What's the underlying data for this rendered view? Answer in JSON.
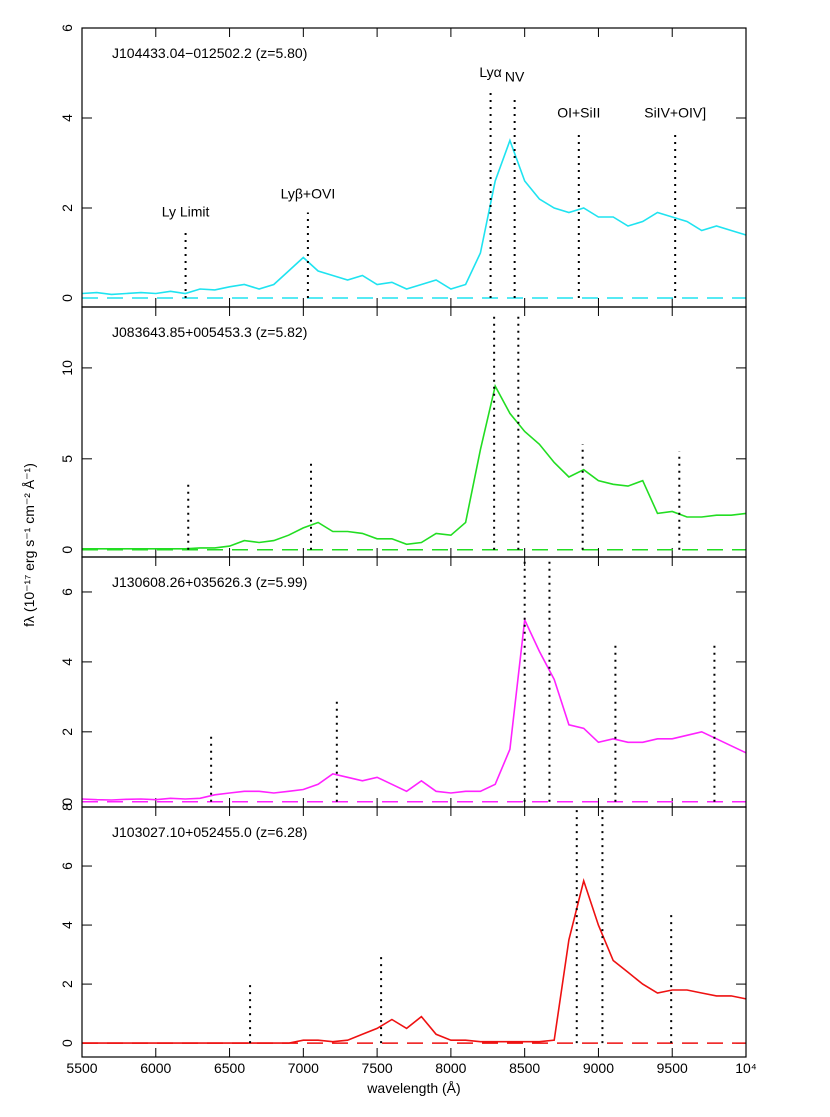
{
  "xlabel": "wavelength (Å)",
  "ylabel": "fλ (10⁻¹⁷ erg s⁻¹ cm⁻² Å⁻¹)",
  "chart_data": [
    {
      "type": "line",
      "title": "J104433.04−012502.2 (z=5.80)",
      "color": "#1fe3f0",
      "x": [
        5500,
        5600,
        5700,
        5800,
        5900,
        6000,
        6100,
        6200,
        6300,
        6400,
        6500,
        6600,
        6700,
        6800,
        6900,
        7000,
        7100,
        7200,
        7300,
        7400,
        7500,
        7600,
        7700,
        7800,
        7900,
        8000,
        8100,
        8200,
        8300,
        8400,
        8500,
        8600,
        8700,
        8800,
        8900,
        9000,
        9100,
        9200,
        9300,
        9400,
        9500,
        9600,
        9700,
        9800,
        9900,
        10000
      ],
      "values": [
        0.1,
        0.12,
        0.08,
        0.1,
        0.12,
        0.1,
        0.15,
        0.1,
        0.2,
        0.18,
        0.25,
        0.3,
        0.2,
        0.3,
        0.6,
        0.9,
        0.6,
        0.5,
        0.4,
        0.5,
        0.3,
        0.35,
        0.2,
        0.3,
        0.4,
        0.2,
        0.3,
        1.0,
        2.6,
        3.5,
        2.6,
        2.2,
        2.0,
        1.9,
        2.0,
        1.8,
        1.8,
        1.6,
        1.7,
        1.9,
        1.8,
        1.7,
        1.5,
        1.6,
        1.5,
        1.4
      ],
      "xlim": [
        5500,
        10000
      ],
      "xticks": [
        5500,
        6000,
        6500,
        7000,
        7500,
        8000,
        8500,
        9000,
        9500,
        {
          "value": 10000,
          "label": "10⁴"
        }
      ],
      "ylim": [
        -0.2,
        6
      ],
      "yticks": [
        0,
        2,
        4,
        6
      ],
      "lines": [
        {
          "label": "Ly Limit",
          "x": 6202,
          "top": 1.5
        },
        {
          "label": "Lyβ+OVI",
          "x": 7031,
          "top": 1.9
        },
        {
          "label": "Lyα",
          "x": 8269,
          "top": 4.6
        },
        {
          "label": "NV",
          "x": 8432,
          "top": 4.5
        },
        {
          "label": "OI+SiII",
          "x": 8867,
          "top": 3.7
        },
        {
          "label": "SiIV+OIV]",
          "x": 9520,
          "top": 3.7
        }
      ]
    },
    {
      "type": "line",
      "title": "J083643.85+005453.3 (z=5.82)",
      "color": "#22dd22",
      "x": [
        5500,
        5600,
        5700,
        5800,
        5900,
        6000,
        6100,
        6200,
        6300,
        6400,
        6500,
        6600,
        6700,
        6800,
        6900,
        7000,
        7100,
        7200,
        7300,
        7400,
        7500,
        7600,
        7700,
        7800,
        7900,
        8000,
        8100,
        8200,
        8300,
        8400,
        8500,
        8600,
        8700,
        8800,
        8900,
        9000,
        9100,
        9200,
        9300,
        9400,
        9500,
        9600,
        9700,
        9800,
        9900,
        10000
      ],
      "values": [
        0.05,
        0.05,
        0.05,
        0.05,
        0.05,
        0.05,
        0.05,
        0.05,
        0.1,
        0.1,
        0.2,
        0.5,
        0.4,
        0.5,
        0.8,
        1.2,
        1.5,
        1.0,
        1.0,
        0.9,
        0.6,
        0.6,
        0.3,
        0.4,
        0.9,
        0.8,
        1.5,
        5.5,
        9.0,
        7.5,
        6.5,
        5.8,
        4.8,
        4.0,
        4.4,
        3.8,
        3.6,
        3.5,
        3.8,
        2.0,
        2.1,
        1.8,
        1.8,
        1.9,
        1.9,
        2.0
      ],
      "xlim": [
        5500,
        10000
      ],
      "xticks": [
        5500,
        6000,
        6500,
        7000,
        7500,
        8000,
        8500,
        9000,
        9500,
        10000
      ],
      "ylim": [
        -0.4,
        13.35
      ],
      "yticks": [
        0,
        5,
        10
      ],
      "lines": [
        {
          "x": 6220,
          "top": 3.7
        },
        {
          "x": 7052,
          "top": 4.8
        },
        {
          "x": 8293,
          "top": 12.9
        },
        {
          "x": 8457,
          "top": 12.9
        },
        {
          "x": 8893,
          "top": 5.8
        },
        {
          "x": 9548,
          "top": 5.4
        }
      ]
    },
    {
      "type": "line",
      "title": "J130608.26+035626.3 (z=5.99)",
      "color": "#ff22ff",
      "x": [
        5500,
        5600,
        5700,
        5800,
        5900,
        6000,
        6100,
        6200,
        6300,
        6400,
        6500,
        6600,
        6700,
        6800,
        6900,
        7000,
        7100,
        7200,
        7300,
        7400,
        7500,
        7600,
        7700,
        7800,
        7900,
        8000,
        8100,
        8200,
        8300,
        8400,
        8500,
        8600,
        8700,
        8800,
        8900,
        9000,
        9100,
        9200,
        9300,
        9400,
        9500,
        9600,
        9700,
        9800,
        9900,
        10000
      ],
      "values": [
        0.08,
        0.06,
        0.05,
        0.07,
        0.08,
        0.06,
        0.1,
        0.08,
        0.1,
        0.2,
        0.25,
        0.3,
        0.3,
        0.25,
        0.3,
        0.35,
        0.5,
        0.8,
        0.7,
        0.6,
        0.7,
        0.5,
        0.3,
        0.6,
        0.3,
        0.25,
        0.3,
        0.3,
        0.5,
        1.5,
        5.2,
        4.3,
        3.5,
        2.2,
        2.1,
        1.7,
        1.8,
        1.7,
        1.7,
        1.8,
        1.8,
        1.9,
        2.0,
        1.8,
        1.6,
        1.4
      ],
      "xlim": [
        5500,
        10000
      ],
      "xticks": [
        5500,
        6000,
        6500,
        7000,
        7500,
        8000,
        8500,
        9000,
        9500,
        10000
      ],
      "ylim": [
        -0.15,
        7
      ],
      "yticks": [
        0,
        2,
        4,
        6
      ],
      "lines": [
        {
          "x": 6375,
          "top": 2.0
        },
        {
          "x": 7227,
          "top": 2.9
        },
        {
          "x": 8500,
          "top": 6.9
        },
        {
          "x": 8668,
          "top": 6.9
        },
        {
          "x": 9115,
          "top": 4.5
        },
        {
          "x": 9786,
          "top": 4.5
        }
      ]
    },
    {
      "type": "line",
      "title": "J103027.10+052455.0 (z=6.28)",
      "color": "#ee1111",
      "x": [
        5500,
        5600,
        5700,
        5800,
        5900,
        6000,
        6100,
        6200,
        6300,
        6400,
        6500,
        6600,
        6700,
        6800,
        6900,
        7000,
        7100,
        7200,
        7300,
        7400,
        7500,
        7600,
        7700,
        7800,
        7900,
        8000,
        8100,
        8200,
        8300,
        8400,
        8500,
        8600,
        8700,
        8800,
        8900,
        9000,
        9100,
        9200,
        9300,
        9400,
        9500,
        9600,
        9700,
        9800,
        9900,
        10000
      ],
      "values": [
        0,
        0,
        0,
        0,
        0,
        0,
        0,
        0,
        0,
        0,
        0,
        0,
        0,
        0,
        0,
        0.1,
        0.1,
        0.05,
        0.1,
        0.3,
        0.5,
        0.8,
        0.5,
        0.9,
        0.3,
        0.1,
        0.1,
        0.05,
        0.05,
        0.05,
        0.05,
        0.05,
        0.1,
        3.5,
        5.5,
        4.0,
        2.8,
        2.4,
        2.0,
        1.7,
        1.8,
        1.8,
        1.7,
        1.6,
        1.6,
        1.5
      ],
      "xlim": [
        5500,
        10000
      ],
      "xticks": [
        5500,
        6000,
        6500,
        7000,
        7500,
        8000,
        8500,
        9000,
        9500,
        {
          "value": 10000,
          "label": "10⁴"
        }
      ],
      "ylim": [
        -0.47,
        8
      ],
      "yticks": [
        0,
        2,
        4,
        6,
        8
      ],
      "lines": [
        {
          "x": 6639,
          "top": 2.0
        },
        {
          "x": 7527,
          "top": 3.0
        },
        {
          "x": 8853,
          "top": 8
        },
        {
          "x": 9027,
          "top": 8
        },
        {
          "x": 9493,
          "top": 4.5
        }
      ]
    }
  ]
}
